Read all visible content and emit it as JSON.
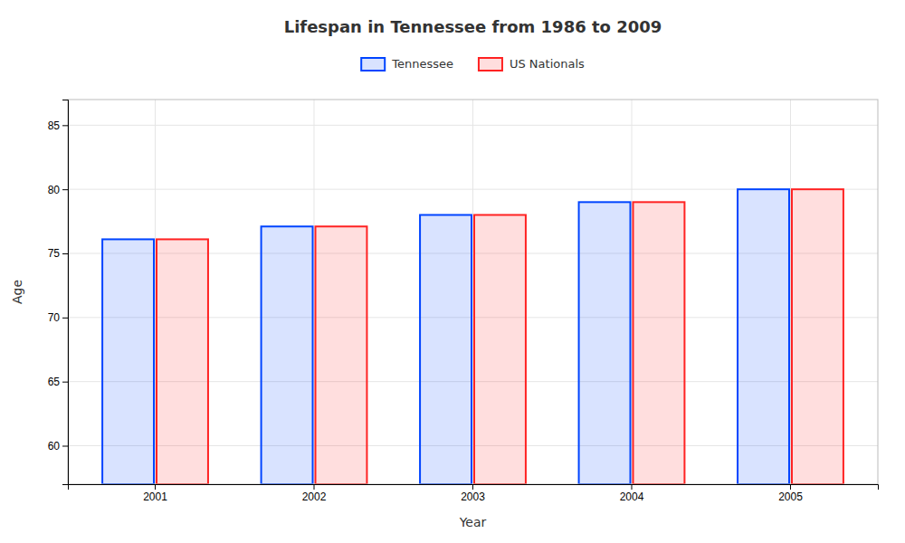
{
  "chart_data": {
    "type": "bar",
    "title": "Lifespan in Tennessee from 1986 to 2009",
    "x_label": "Year",
    "y_label": "Age",
    "categories": [
      "2001",
      "2002",
      "2003",
      "2004",
      "2005"
    ],
    "series": [
      {
        "name": "Tennessee",
        "color": "#0044ff",
        "values": [
          76.1,
          77.1,
          78.0,
          79.0,
          80.0
        ]
      },
      {
        "name": "US Nationals",
        "color": "#ff2222",
        "values": [
          76.1,
          77.1,
          78.0,
          79.0,
          80.0
        ]
      }
    ],
    "ylim": [
      57,
      87
    ],
    "yticks": [
      60,
      65,
      70,
      75,
      80,
      85
    ],
    "grid": true,
    "legend": "top"
  }
}
